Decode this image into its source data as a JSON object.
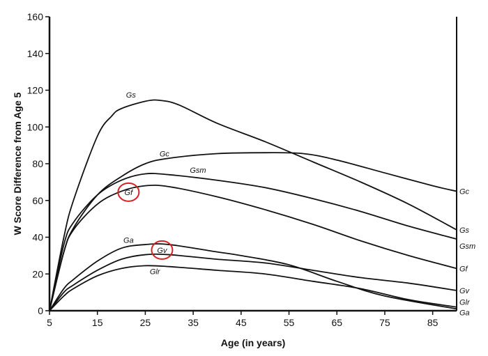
{
  "chart_data": {
    "type": "line",
    "title": "",
    "xlabel": "Age (in years)",
    "ylabel": "W Score Difference from Age 5",
    "xlim": [
      5,
      90
    ],
    "ylim": [
      0,
      160
    ],
    "xticks": [
      5,
      15,
      25,
      35,
      45,
      55,
      65,
      75,
      85
    ],
    "yticks": [
      0,
      20,
      40,
      60,
      80,
      100,
      120,
      140,
      160
    ],
    "grid": false,
    "line_color": "#111111",
    "highlight_color": "#d42020",
    "series": [
      {
        "name": "Gs",
        "x": [
          5,
          8,
          10,
          15,
          18,
          20,
          25,
          28,
          32,
          40,
          50,
          60,
          70,
          80,
          90
        ],
        "y": [
          0,
          40,
          60,
          95,
          106,
          110,
          114,
          114.5,
          112,
          102,
          92,
          81,
          70,
          58,
          44
        ],
        "label_at": [
          22,
          116
        ],
        "end_label": true
      },
      {
        "name": "Gc",
        "x": [
          5,
          8,
          10,
          15,
          20,
          25,
          30,
          40,
          50,
          58,
          65,
          75,
          85,
          90
        ],
        "y": [
          0,
          32,
          45,
          63,
          73,
          80,
          83,
          85.5,
          86,
          85.5,
          82,
          75,
          68,
          65
        ],
        "label_at": [
          29,
          84
        ],
        "end_label": true
      },
      {
        "name": "Gsm",
        "x": [
          5,
          8,
          10,
          15,
          20,
          25,
          30,
          40,
          50,
          60,
          70,
          80,
          90
        ],
        "y": [
          0,
          36,
          48,
          63,
          71,
          74.5,
          74,
          71,
          67,
          61,
          54,
          46,
          39
        ],
        "label_at": [
          36,
          75
        ],
        "end_label": true
      },
      {
        "name": "Gf",
        "x": [
          5,
          8,
          10,
          15,
          20,
          25,
          30,
          40,
          50,
          60,
          70,
          80,
          90
        ],
        "y": [
          0,
          32,
          44,
          58,
          65,
          68,
          67.5,
          62,
          55,
          47,
          38,
          30,
          23
        ],
        "label_at": [
          21.5,
          63
        ],
        "end_label": true,
        "highlighted": true
      },
      {
        "name": "Ga",
        "x": [
          5,
          8,
          10,
          15,
          20,
          25,
          30,
          40,
          45,
          55,
          65,
          75,
          90
        ],
        "y": [
          0,
          12,
          17,
          27,
          34,
          36,
          36,
          32,
          30,
          25,
          16,
          8,
          1
        ],
        "label_at": [
          21.5,
          37
        ],
        "end_label": true
      },
      {
        "name": "Gv",
        "x": [
          5,
          8,
          10,
          15,
          20,
          25,
          30,
          40,
          50,
          60,
          70,
          80,
          90
        ],
        "y": [
          0,
          10,
          14,
          22,
          28,
          30.5,
          30.5,
          28,
          26,
          22,
          18,
          15,
          11
        ],
        "label_at": [
          28.5,
          31.5
        ],
        "end_label": true,
        "highlighted": true
      },
      {
        "name": "Glr",
        "x": [
          5,
          8,
          10,
          15,
          20,
          25,
          30,
          40,
          50,
          60,
          70,
          80,
          90
        ],
        "y": [
          0,
          8,
          12,
          19,
          23,
          24.5,
          24,
          22,
          20,
          16,
          12,
          6,
          2
        ],
        "label_at": [
          27,
          20
        ],
        "end_label": true
      }
    ]
  }
}
